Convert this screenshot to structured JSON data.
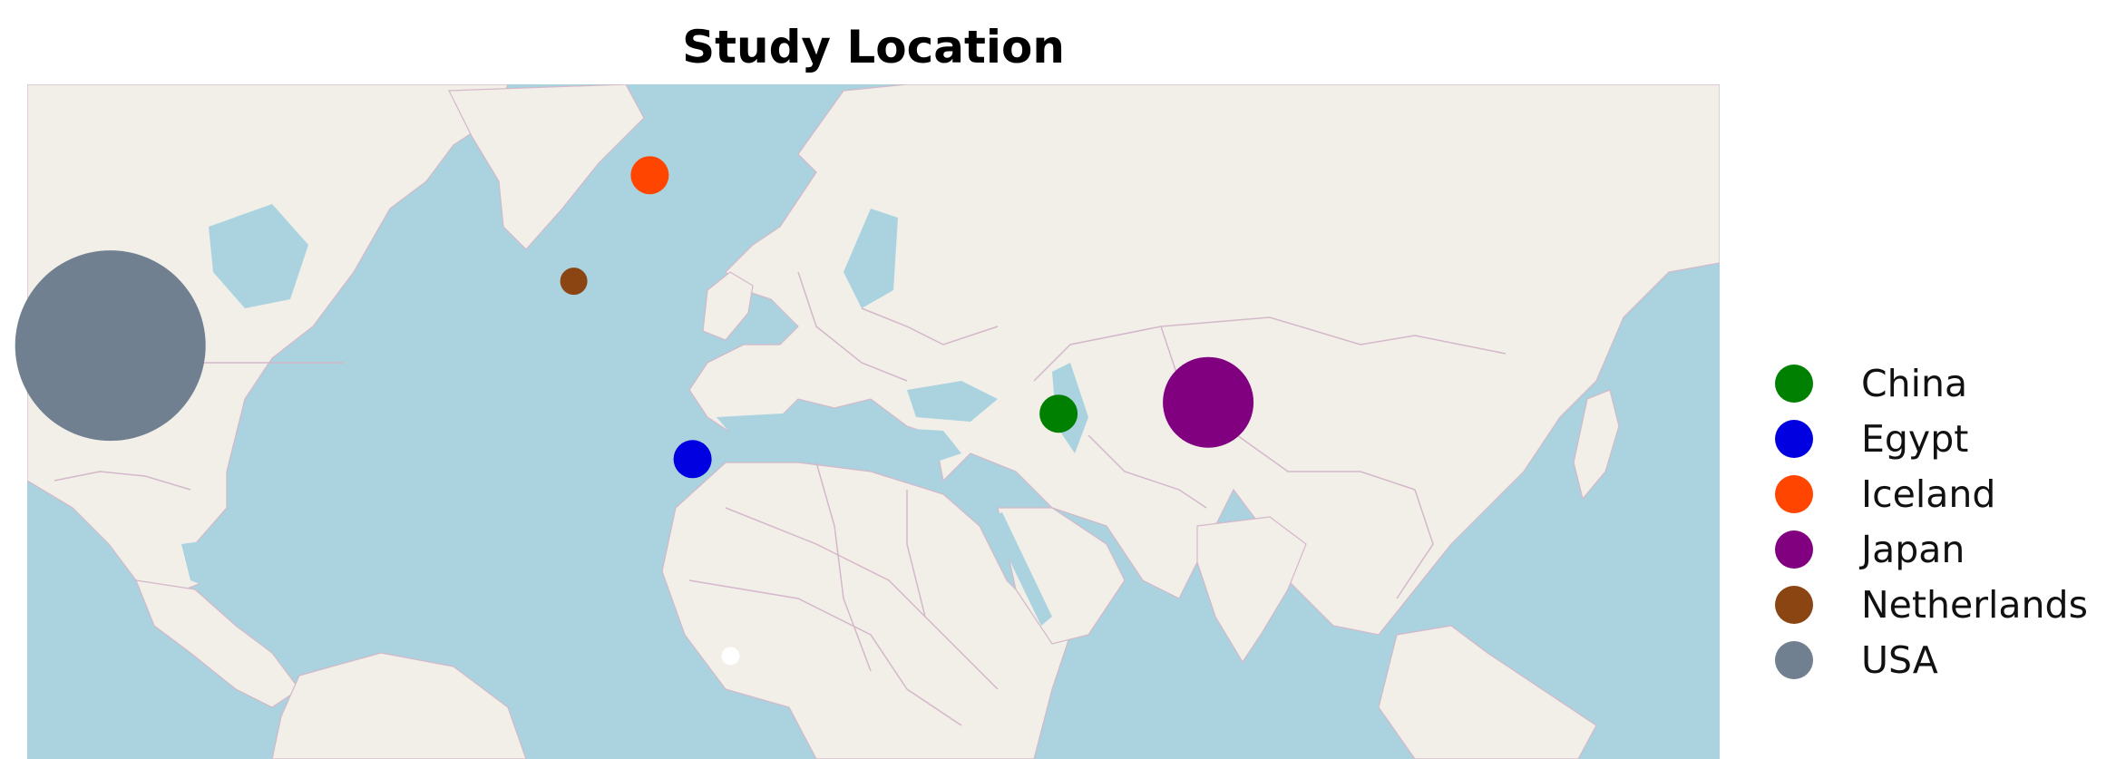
{
  "title": "Study Location",
  "map": {
    "basemap": "OpenStreetMap-style world map with country borders, Atlantic-centred",
    "colors": {
      "water": "#aad3df",
      "land": "#f2efe9",
      "border": "#d3b8c9"
    }
  },
  "markers": [
    {
      "country": "USA",
      "color": "#708090",
      "lon": -92.5,
      "lat": 43.5,
      "size_rank": 1
    },
    {
      "country": "Japan",
      "color": "#800080",
      "lon": 138.5,
      "lat": 36.0,
      "size_rank": 2
    },
    {
      "country": "China",
      "color": "#008000",
      "lon": 107.0,
      "lat": 34.5,
      "size_rank": 3
    },
    {
      "country": "Egypt",
      "color": "#0000e0",
      "lon": 30.0,
      "lat": 28.5,
      "size_rank": 3
    },
    {
      "country": "Iceland",
      "color": "#ff4500",
      "lon": 21.0,
      "lat": 66.0,
      "size_rank": 3
    },
    {
      "country": "Netherlands",
      "color": "#8b4513",
      "lon": 5.0,
      "lat": 52.0,
      "size_rank": 4
    },
    {
      "country": "",
      "color": "#ffffff",
      "lon": 38.0,
      "lat": 2.5,
      "size_rank": 5
    }
  ],
  "legend": {
    "position": "right",
    "items": [
      {
        "label": "China",
        "color": "#008000"
      },
      {
        "label": "Egypt",
        "color": "#0000e0"
      },
      {
        "label": "Iceland",
        "color": "#ff4500"
      },
      {
        "label": "Japan",
        "color": "#800080"
      },
      {
        "label": "Netherlands",
        "color": "#8b4513"
      },
      {
        "label": "USA",
        "color": "#708090"
      }
    ]
  }
}
